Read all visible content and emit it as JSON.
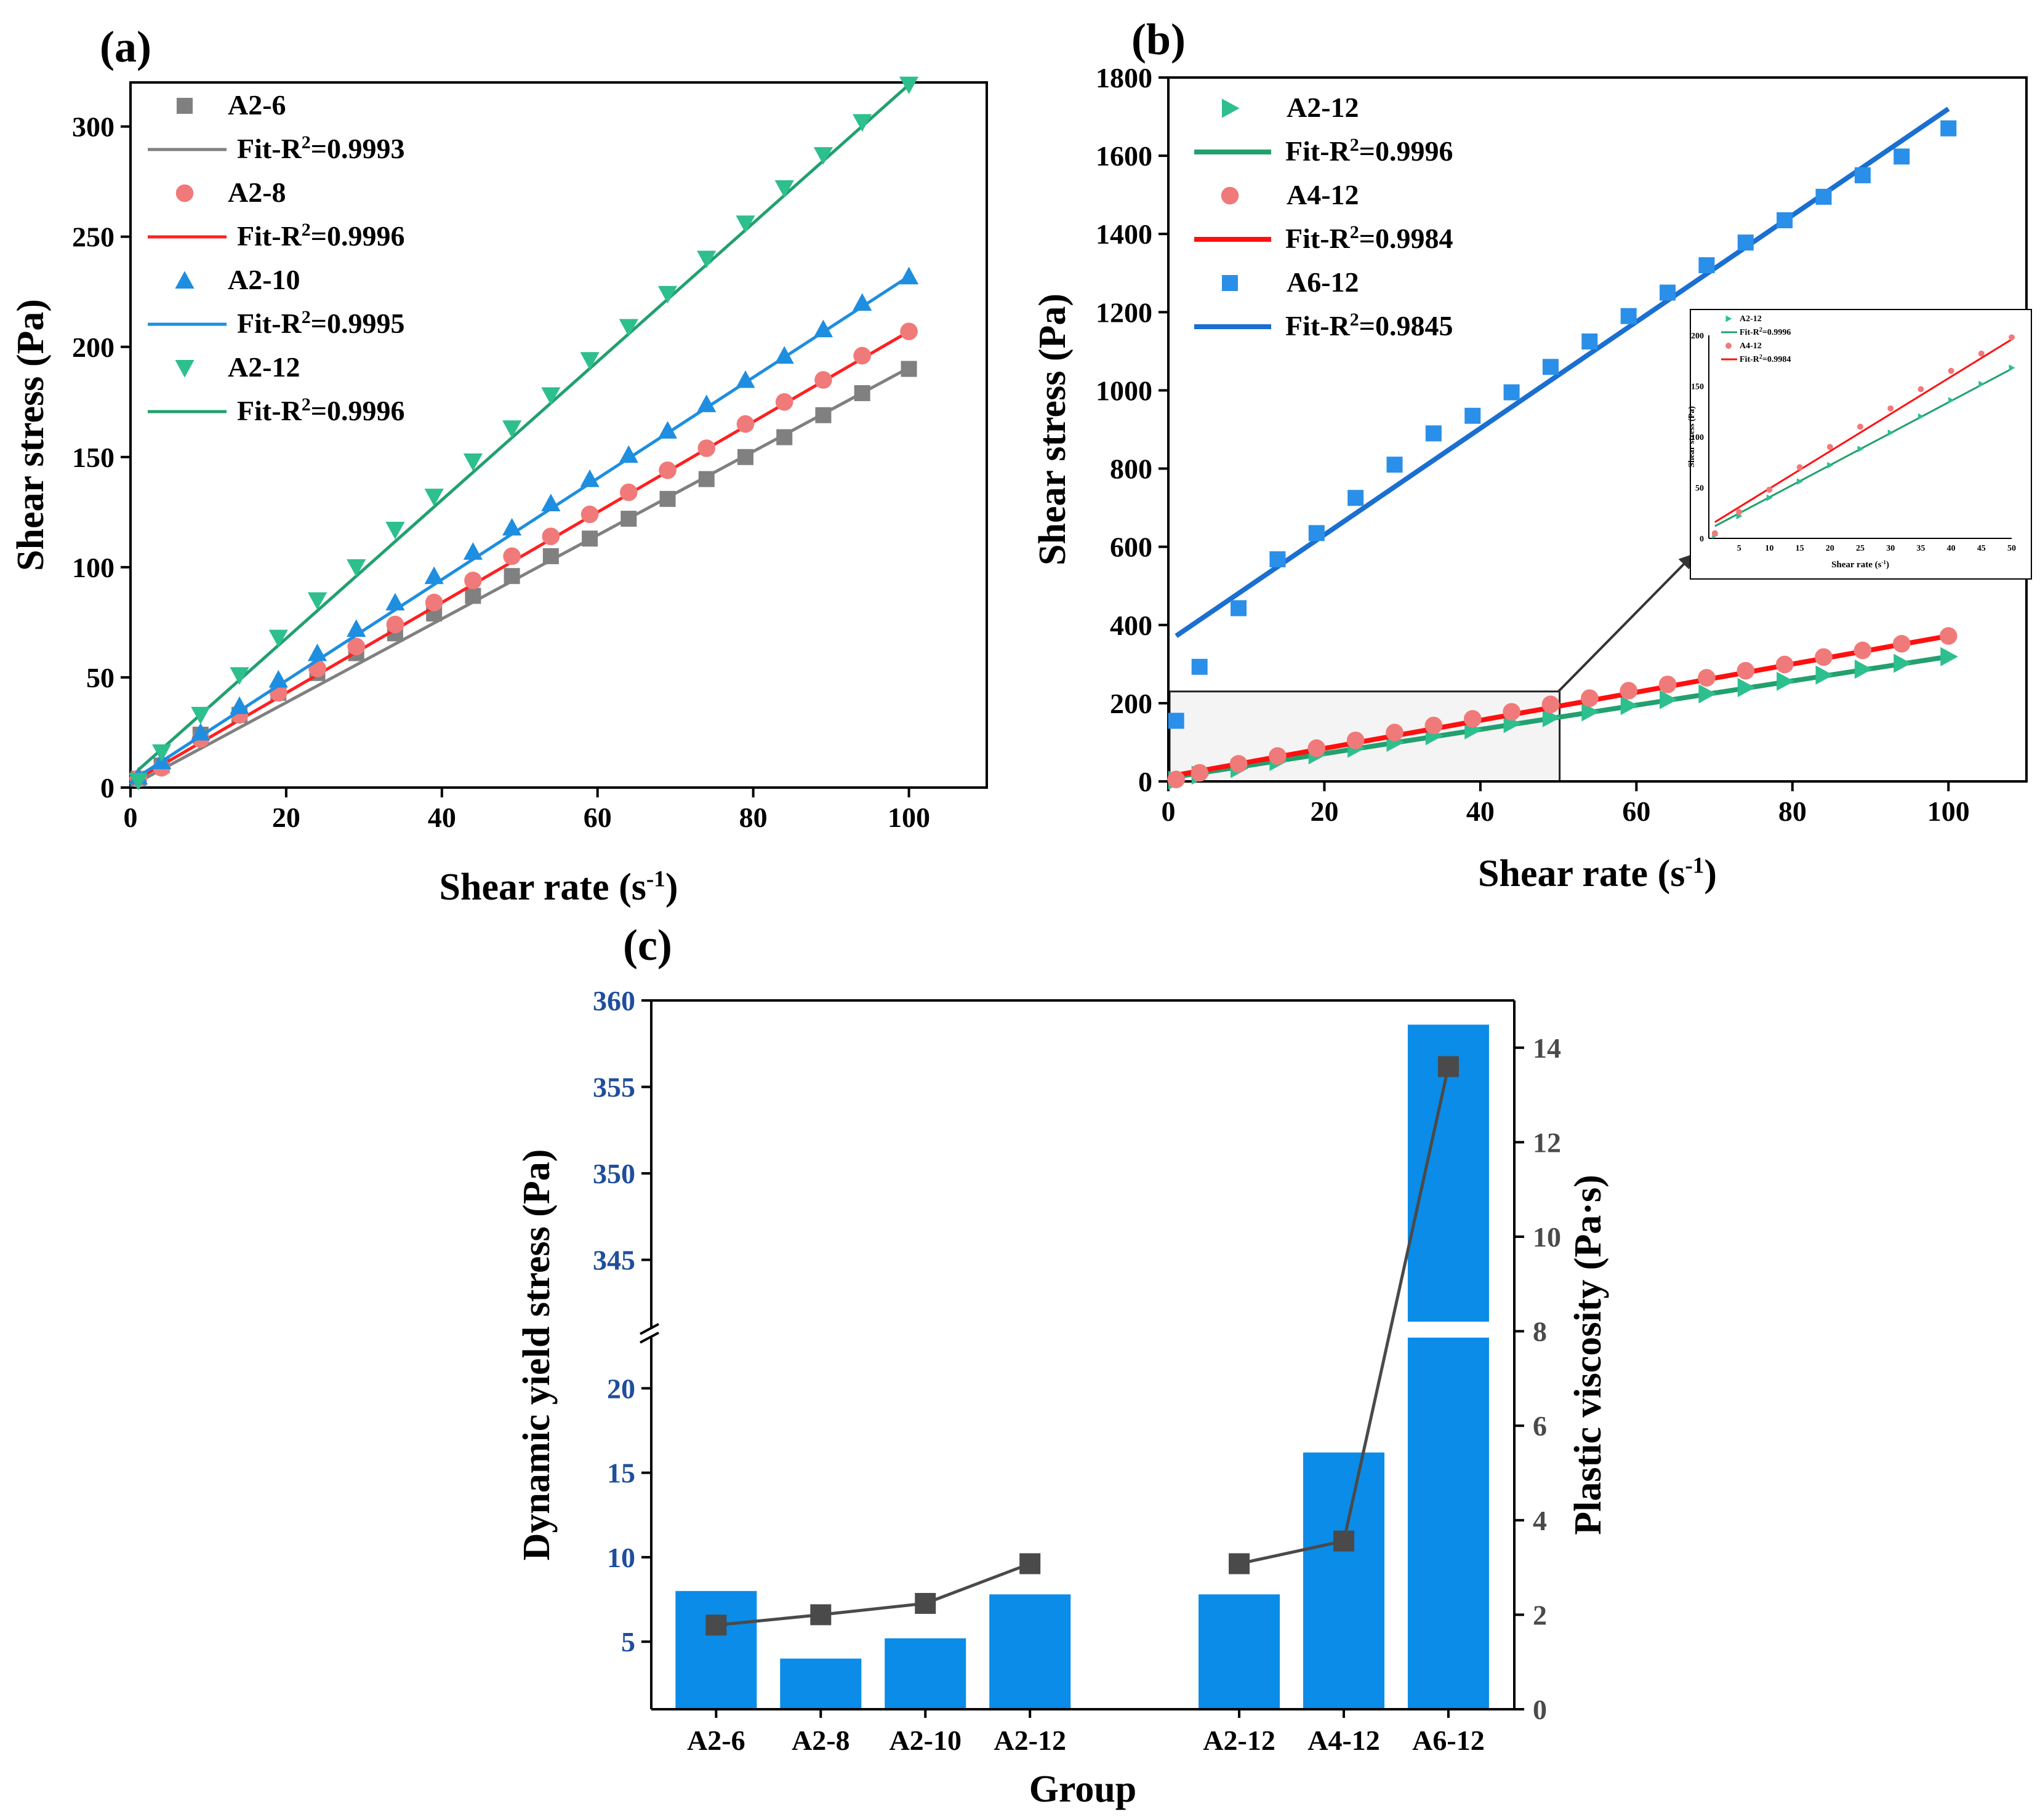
{
  "chart_data": [
    {
      "panel": "(a)",
      "type": "scatter",
      "xlabel": "Shear rate (s",
      "xlabel_sup": "-1",
      "xlabel_end": ")",
      "ylabel": "Shear stress (Pa)",
      "xlim": [
        0,
        110
      ],
      "ylim": [
        0,
        320
      ],
      "xticks": [
        0,
        20,
        40,
        60,
        80,
        100
      ],
      "yticks": [
        0,
        50,
        100,
        150,
        200,
        250,
        300
      ],
      "legend_position": "top-left",
      "x": [
        1,
        4,
        9,
        14,
        19,
        24,
        29,
        34,
        39,
        44,
        49,
        54,
        59,
        64,
        69,
        74,
        79,
        84,
        89,
        94,
        100
      ],
      "series": [
        {
          "name": "A2-6",
          "marker": "square",
          "color": "#808080",
          "fit_color": "#808080",
          "fit_label": "Fit-R",
          "fit_r2": "=0.9993",
          "values": [
            4,
            10,
            24,
            33,
            43,
            52,
            61,
            70,
            79,
            87,
            96,
            105,
            113,
            122,
            131,
            140,
            150,
            159,
            169,
            179,
            190
          ],
          "fit": [
            2.5,
            190.5
          ]
        },
        {
          "name": "A2-8",
          "marker": "circle",
          "color": "#f07a7a",
          "fit_color": "#ff2020",
          "fit_label": "Fit-R",
          "fit_r2": "=0.9996",
          "values": [
            4,
            9,
            22,
            33,
            43,
            54,
            64,
            74,
            84,
            94,
            105,
            114,
            124,
            134,
            144,
            154,
            165,
            175,
            185,
            196,
            207
          ],
          "fit": [
            4,
            207
          ]
        },
        {
          "name": "A2-10",
          "marker": "triangle-up",
          "color": "#1e8ee0",
          "fit_color": "#1e8ee0",
          "fit_label": "Fit-R",
          "fit_r2": "=0.9995",
          "values": [
            5,
            12,
            25,
            37,
            49,
            61,
            72,
            84,
            96,
            107,
            118,
            129,
            140,
            151,
            162,
            174,
            185,
            196,
            208,
            220,
            232
          ],
          "fit": [
            5,
            232
          ]
        },
        {
          "name": "A2-12",
          "marker": "triangle-down",
          "color": "#2dbf8e",
          "fit_color": "#22a06e",
          "fit_label": "Fit-R",
          "fit_r2": "=0.9996",
          "values": [
            3,
            16,
            33,
            51,
            68,
            85,
            100,
            117,
            132,
            148,
            163,
            178,
            194,
            209,
            224,
            240,
            256,
            272,
            287,
            302,
            319
          ],
          "fit": [
            8,
            319
          ]
        }
      ]
    },
    {
      "panel": "(b)",
      "type": "scatter",
      "xlabel": "Shear rate (s",
      "xlabel_sup": "-1",
      "xlabel_end": ")",
      "ylabel": "Shear stress (Pa)",
      "xlim": [
        0,
        110
      ],
      "ylim": [
        0,
        1800
      ],
      "xticks": [
        0,
        20,
        40,
        60,
        80,
        100
      ],
      "yticks": [
        0,
        200,
        400,
        600,
        800,
        1000,
        1200,
        1400,
        1600,
        1800
      ],
      "legend_position": "top-left",
      "x": [
        1,
        4,
        9,
        14,
        19,
        24,
        29,
        34,
        39,
        44,
        49,
        54,
        59,
        64,
        69,
        74,
        79,
        84,
        89,
        94,
        100
      ],
      "series": [
        {
          "name": "A2-12",
          "marker": "triangle-right",
          "color": "#2dbf8e",
          "fit_color": "#22a06e",
          "fit_label": "Fit-R",
          "fit_r2": "=0.9996",
          "values": [
            3,
            16,
            33,
            51,
            68,
            85,
            100,
            117,
            132,
            148,
            163,
            178,
            194,
            209,
            224,
            240,
            256,
            272,
            287,
            302,
            319
          ],
          "fit": [
            12,
            319
          ]
        },
        {
          "name": "A4-12",
          "marker": "circle",
          "color": "#f07a7a",
          "fit_color": "#ff1010",
          "fit_label": "Fit-R",
          "fit_r2": "=0.9984",
          "values": [
            5,
            22,
            45,
            65,
            85,
            105,
            125,
            143,
            160,
            178,
            197,
            213,
            232,
            248,
            265,
            283,
            299,
            318,
            335,
            352,
            372
          ],
          "fit": [
            16,
            372
          ]
        },
        {
          "name": "A6-12",
          "marker": "square",
          "color": "#2a8fe8",
          "fit_color": "#1a6fd0",
          "fit_label": "Fit-R",
          "fit_r2": "=0.9845",
          "values": [
            155,
            293,
            443,
            568,
            635,
            725,
            810,
            890,
            935,
            995,
            1060,
            1125,
            1190,
            1250,
            1320,
            1378,
            1435,
            1495,
            1550,
            1598,
            1670
          ],
          "fit": [
            372,
            1720
          ]
        }
      ],
      "zoom_box": {
        "xrange": [
          0,
          50
        ],
        "yrange": [
          0,
          230
        ]
      },
      "inset": {
        "xlabel": "Shear rate (s",
        "xlabel_sup": "-1",
        "xlabel_end": ")",
        "ylabel": "Shear stress (Pa)",
        "xlim": [
          0,
          50
        ],
        "ylim": [
          0,
          200
        ],
        "xticks": [
          5,
          10,
          15,
          20,
          25,
          30,
          35,
          40,
          45,
          50
        ],
        "yticks": [
          0,
          50,
          100,
          150,
          200
        ],
        "series": [
          {
            "name": "A2-12",
            "fit_r2": "=0.9996",
            "color": "#2dbf8e",
            "fit_color": "#22a06e",
            "x": [
              1,
              5,
              10,
              15,
              20,
              25,
              30,
              35,
              40,
              45,
              50
            ],
            "values": [
              3,
              22,
              40,
              56,
              72,
              88,
              104,
              120,
              136,
              152,
              168
            ],
            "fit": [
              12,
              167
            ]
          },
          {
            "name": "A4-12",
            "fit_r2": "=0.9984",
            "color": "#f07a7a",
            "fit_color": "#ff1010",
            "x": [
              1,
              5,
              10,
              15,
              20,
              25,
              30,
              35,
              40,
              45,
              50
            ],
            "values": [
              5,
              26,
              48,
              70,
              90,
              110,
              128,
              147,
              165,
              182,
              198
            ],
            "fit": [
              16,
              196
            ]
          }
        ]
      }
    },
    {
      "panel": "(c)",
      "type": "bar",
      "categories": [
        "A2-6",
        "A2-8",
        "A2-10",
        "A2-12",
        "",
        "A2-12",
        "A4-12",
        "A6-12"
      ],
      "xlabel": "Group",
      "ylabel_left": "Dynamic yield stress (Pa)",
      "ylabel_right": "Plastic viscosity (Pa·s)",
      "left_axis": {
        "lower_range": [
          1,
          23
        ],
        "upper_range": [
          341,
          360
        ],
        "lower_ticks": [
          5,
          10,
          15,
          20
        ],
        "upper_ticks": [
          345,
          350,
          355,
          360
        ]
      },
      "right_axis": {
        "ylim": [
          0,
          15
        ],
        "ticks": [
          0,
          2,
          4,
          6,
          8,
          10,
          12,
          14
        ]
      },
      "bars": {
        "name": "Dynamic yield stress",
        "color": "#0a8ce8",
        "values": [
          8.0,
          4.0,
          5.2,
          7.8,
          null,
          7.8,
          16.2,
          358.6
        ]
      },
      "line": {
        "name": "Plastic viscosity",
        "color": "#4a4a4a",
        "values": [
          1.78,
          2.0,
          2.24,
          3.08,
          null,
          3.08,
          3.56,
          13.6
        ]
      }
    }
  ]
}
